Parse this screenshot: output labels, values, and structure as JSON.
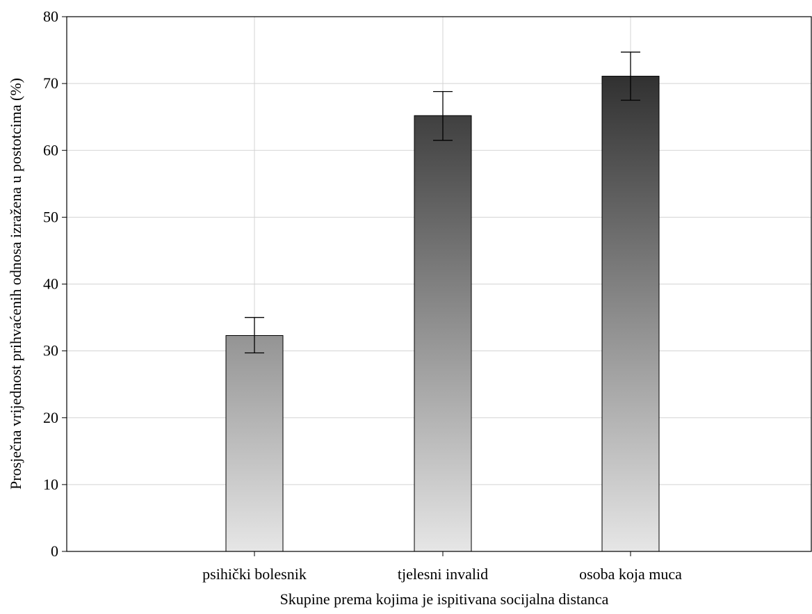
{
  "chart_data": {
    "type": "bar",
    "title": "",
    "xlabel": "Skupine prema kojima je ispitivana socijalna distanca",
    "ylabel": "Prosječna vrijednost prihvaćenih odnosa izražena u postotcima (%)",
    "categories": [
      "psihički bolesnik",
      "tjelesni invalid",
      "osoba koja muca"
    ],
    "values": [
      32.3,
      65.2,
      71.1
    ],
    "error_low": [
      29.7,
      61.5,
      67.5
    ],
    "error_high": [
      35.0,
      68.8,
      74.7
    ],
    "ylim": [
      0,
      80
    ],
    "yticks": [
      "0",
      "10",
      "20",
      "30",
      "40",
      "50",
      "60",
      "70",
      "80"
    ],
    "grid": true,
    "legend": "none",
    "colors": {
      "bar_top": "#1a1a1a",
      "bar_bottom": "#e6e6e6",
      "grid": "#d3d3d3",
      "axis": "#000000"
    }
  }
}
